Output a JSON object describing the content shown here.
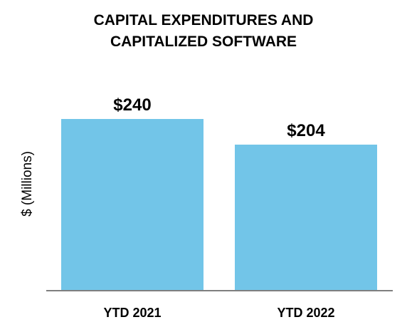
{
  "chart_data": {
    "type": "bar",
    "title_lines": [
      "CAPITAL EXPENDITURES AND",
      "CAPITALIZED SOFTWARE"
    ],
    "ylabel": "$ (Millions)",
    "xlabel": "",
    "categories": [
      "YTD 2021",
      "YTD 2022"
    ],
    "values": [
      240,
      204
    ],
    "data_labels": [
      "$240",
      "$204"
    ],
    "ylim": [
      0,
      240
    ],
    "grid": false,
    "legend": "none",
    "bar_color": "#72C5E8",
    "axis_color": "#7F7F7F"
  }
}
